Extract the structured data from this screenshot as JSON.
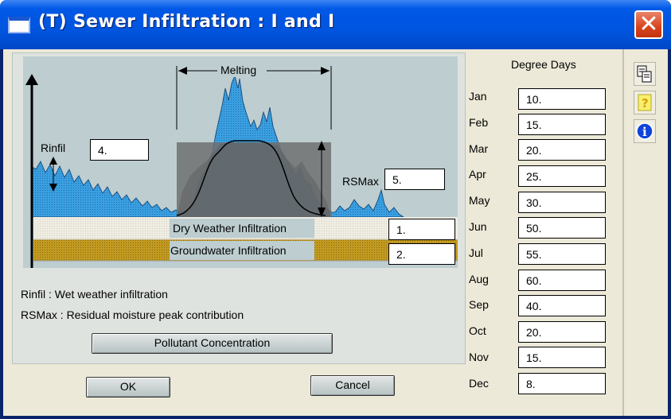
{
  "window": {
    "title": "(T) Sewer Infiltration : I and I"
  },
  "diagram": {
    "melting_label": "Melting",
    "rinfil_label": "Rinfil",
    "rsmax_label": "RSMax",
    "dry_weather_label": "Dry Weather Infiltration",
    "groundwater_label": "Groundwater Infiltration",
    "colors": {
      "background": "#bdcdd0",
      "rain": "#3a9fe0",
      "melting_box": "#707070",
      "dry_band": "#efece2",
      "ground_band": "#c29a20"
    }
  },
  "fields": {
    "rinfil": "4.",
    "rsmax": "5.",
    "dry_weather": "1.",
    "groundwater": "2."
  },
  "legend": {
    "rinfil": "Rinfil : Wet weather infiltration",
    "rsmax": "RSMax : Residual moisture peak contribution"
  },
  "buttons": {
    "pollutant": "Pollutant Concentration",
    "ok": "OK",
    "cancel": "Cancel"
  },
  "degree_days": {
    "title": "Degree Days",
    "months": [
      {
        "label": "Jan",
        "value": "10."
      },
      {
        "label": "Feb",
        "value": "15."
      },
      {
        "label": "Mar",
        "value": "20."
      },
      {
        "label": "Apr",
        "value": "25."
      },
      {
        "label": "May",
        "value": "30."
      },
      {
        "label": "Jun",
        "value": "50."
      },
      {
        "label": "Jul",
        "value": "55."
      },
      {
        "label": "Aug",
        "value": "60."
      },
      {
        "label": "Sep",
        "value": "40."
      },
      {
        "label": "Oct",
        "value": "20."
      },
      {
        "label": "Nov",
        "value": "15."
      },
      {
        "label": "Dec",
        "value": "8."
      }
    ]
  },
  "side_tools": [
    "copy-icon",
    "help-icon",
    "info-icon"
  ],
  "help_glyph": "?",
  "info_glyph": "i",
  "close_glyph": "✕"
}
